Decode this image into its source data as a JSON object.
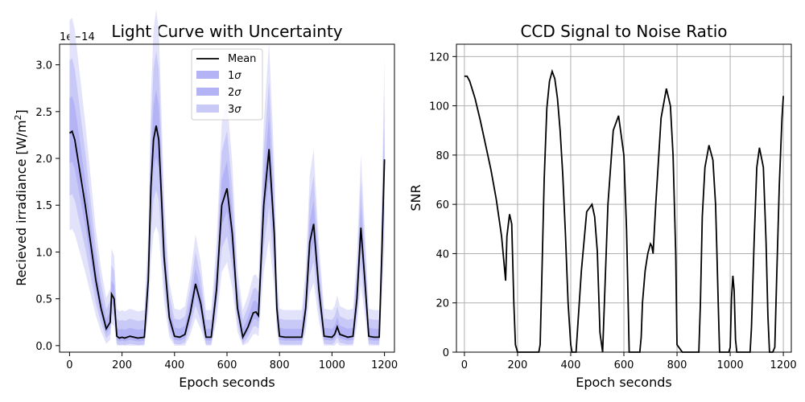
{
  "chart_data": [
    {
      "type": "line",
      "title": "Light Curve with Uncertainty",
      "xlabel": "Epoch seconds",
      "ylabel": "Recieved irradiance [W/m²]",
      "ylabel_main": "Recieved irradiance [W/m",
      "ylabel_sup": "2",
      "ylabel_end": "]",
      "offset_text": "1e−14",
      "offset_base": "1e",
      "offset_exp": "−14",
      "xlim": [
        -38,
        1238
      ],
      "ylim": [
        -0.07,
        3.22
      ],
      "y_scale_factor": 1e-14,
      "xticks": [
        0,
        200,
        400,
        600,
        800,
        1000,
        1200
      ],
      "yticks": [
        0.0,
        0.5,
        1.0,
        1.5,
        2.0,
        2.5,
        3.0
      ],
      "ytick_labels": [
        "0.0",
        "0.5",
        "1.0",
        "1.5",
        "2.0",
        "2.5",
        "3.0"
      ],
      "grid": false,
      "legend_position": "upper center",
      "legend": [
        {
          "label": "Mean",
          "kind": "line",
          "color": "#000000"
        },
        {
          "label": "1σ",
          "base": "1",
          "sym": "σ",
          "kind": "patch",
          "color": "#b3b3f5"
        },
        {
          "label": "2σ",
          "base": "2",
          "sym": "σ",
          "kind": "patch",
          "color": "#b3b3f5"
        },
        {
          "label": "3σ",
          "base": "3",
          "sym": "σ",
          "kind": "patch",
          "color": "#cacaf8"
        }
      ],
      "band_colors": {
        "band1": "#b3b3f5",
        "band2": "#c9c9f8",
        "band3": "#e2e2fb"
      },
      "series": [
        {
          "name": "Mean",
          "x": [
            0,
            10,
            20,
            40,
            60,
            80,
            100,
            120,
            140,
            155,
            160,
            170,
            180,
            190,
            200,
            210,
            230,
            260,
            285,
            300,
            310,
            320,
            330,
            340,
            350,
            360,
            380,
            400,
            420,
            440,
            460,
            480,
            500,
            520,
            540,
            560,
            580,
            600,
            620,
            640,
            660,
            680,
            700,
            710,
            720,
            740,
            760,
            780,
            790,
            800,
            820,
            860,
            885,
            900,
            915,
            930,
            950,
            970,
            1000,
            1010,
            1020,
            1030,
            1060,
            1080,
            1095,
            1110,
            1125,
            1140,
            1160,
            1170,
            1180,
            1190,
            1200
          ],
          "values": [
            2.27,
            2.29,
            2.2,
            1.85,
            1.5,
            1.1,
            0.7,
            0.4,
            0.18,
            0.25,
            0.55,
            0.5,
            0.1,
            0.08,
            0.09,
            0.08,
            0.1,
            0.08,
            0.09,
            0.7,
            1.7,
            2.2,
            2.35,
            2.2,
            1.6,
            0.95,
            0.3,
            0.1,
            0.09,
            0.12,
            0.35,
            0.66,
            0.45,
            0.09,
            0.09,
            0.6,
            1.5,
            1.68,
            1.2,
            0.4,
            0.09,
            0.2,
            0.35,
            0.36,
            0.32,
            1.5,
            2.1,
            1.2,
            0.4,
            0.1,
            0.09,
            0.09,
            0.09,
            0.4,
            1.1,
            1.3,
            0.6,
            0.1,
            0.09,
            0.12,
            0.2,
            0.12,
            0.09,
            0.1,
            0.5,
            1.26,
            0.7,
            0.1,
            0.09,
            0.09,
            0.09,
            1.0,
            1.99
          ]
        }
      ]
    },
    {
      "type": "line",
      "title": "CCD Signal to Noise Ratio",
      "xlabel": "Epoch seconds",
      "ylabel": "SNR",
      "xlim": [
        -30,
        1230
      ],
      "ylim": [
        0,
        125
      ],
      "xticks": [
        0,
        200,
        400,
        600,
        800,
        1000,
        1200
      ],
      "yticks": [
        0,
        20,
        40,
        60,
        80,
        100,
        120
      ],
      "grid": true,
      "series": [
        {
          "name": "SNR",
          "x": [
            0,
            10,
            20,
            40,
            60,
            80,
            100,
            120,
            140,
            155,
            160,
            170,
            178,
            186,
            192,
            200,
            210,
            240,
            280,
            285,
            290,
            300,
            310,
            320,
            330,
            340,
            350,
            360,
            370,
            380,
            390,
            400,
            405,
            412,
            420,
            440,
            460,
            480,
            490,
            500,
            505,
            510,
            520,
            540,
            560,
            580,
            600,
            610,
            615,
            620,
            660,
            665,
            670,
            680,
            690,
            700,
            705,
            710,
            720,
            740,
            760,
            775,
            785,
            795,
            800,
            820,
            860,
            882,
            888,
            895,
            905,
            920,
            935,
            945,
            950,
            955,
            960,
            995,
            1000,
            1005,
            1010,
            1015,
            1020,
            1025,
            1030,
            1060,
            1075,
            1080,
            1090,
            1100,
            1110,
            1125,
            1135,
            1142,
            1148,
            1160,
            1168,
            1175,
            1185,
            1195,
            1200
          ],
          "values": [
            112,
            112,
            110,
            103,
            94,
            84,
            74,
            62,
            47,
            29,
            47,
            56,
            52,
            20,
            3,
            0,
            0,
            0,
            0,
            3,
            25,
            70,
            99,
            110,
            114,
            111,
            103,
            90,
            72,
            48,
            20,
            3,
            0,
            0,
            0,
            33,
            57,
            60,
            55,
            41,
            25,
            8,
            0,
            60,
            90,
            96,
            80,
            50,
            25,
            0,
            0,
            6,
            20,
            33,
            40,
            44,
            43,
            40,
            60,
            95,
            107,
            100,
            80,
            40,
            3,
            0,
            0,
            0,
            20,
            55,
            75,
            84,
            78,
            60,
            40,
            20,
            0,
            0,
            2,
            22,
            31,
            25,
            5,
            0,
            0,
            0,
            0,
            10,
            45,
            75,
            83,
            75,
            45,
            15,
            0,
            0,
            2,
            30,
            68,
            95,
            104
          ]
        }
      ]
    }
  ]
}
